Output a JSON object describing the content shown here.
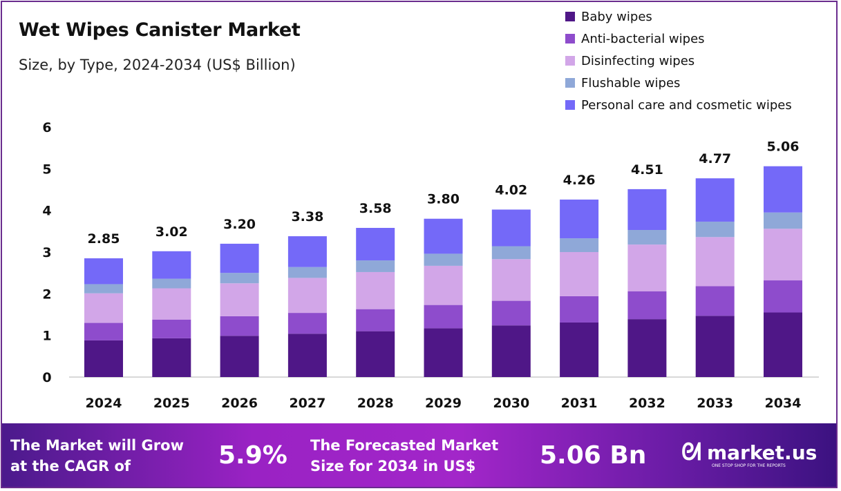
{
  "chart_data": {
    "type": "bar",
    "stacked": true,
    "title": "Wet Wipes Canister Market",
    "subtitle": "Size, by Type, 2024-2034 (US$ Billion)",
    "xlabel": "",
    "ylabel": "",
    "ylim": [
      0,
      6
    ],
    "yticks": [
      "0",
      "1",
      "2",
      "3",
      "4",
      "5",
      "6"
    ],
    "grid": false,
    "legend_position": "top-right",
    "categories": [
      "2024",
      "2025",
      "2026",
      "2027",
      "2028",
      "2029",
      "2030",
      "2031",
      "2032",
      "2033",
      "2034"
    ],
    "totals": [
      "2.85",
      "3.02",
      "3.20",
      "3.38",
      "3.58",
      "3.80",
      "4.02",
      "4.26",
      "4.51",
      "4.77",
      "5.06"
    ],
    "series": [
      {
        "name": "Baby wipes",
        "color": "#4f1787",
        "values": [
          0.88,
          0.93,
          0.99,
          1.04,
          1.1,
          1.17,
          1.24,
          1.31,
          1.39,
          1.47,
          1.55
        ]
      },
      {
        "name": "Anti-bacterial wipes",
        "color": "#8e4ccc",
        "values": [
          0.42,
          0.45,
          0.47,
          0.5,
          0.53,
          0.56,
          0.59,
          0.63,
          0.67,
          0.71,
          0.77
        ]
      },
      {
        "name": "Disinfecting wipes",
        "color": "#d2a6e8",
        "values": [
          0.71,
          0.75,
          0.79,
          0.84,
          0.89,
          0.94,
          1.0,
          1.06,
          1.12,
          1.18,
          1.24
        ]
      },
      {
        "name": "Flushable wipes",
        "color": "#8fa8d8",
        "values": [
          0.22,
          0.23,
          0.25,
          0.26,
          0.28,
          0.29,
          0.31,
          0.33,
          0.35,
          0.37,
          0.39
        ]
      },
      {
        "name": "Personal care and cosmetic wipes",
        "color": "#7469f8",
        "values": [
          0.62,
          0.66,
          0.7,
          0.74,
          0.78,
          0.84,
          0.88,
          0.93,
          0.98,
          1.04,
          1.11
        ]
      }
    ]
  },
  "footer": {
    "cagr_label_1": "The Market will Grow",
    "cagr_label_2": "at the CAGR of",
    "cagr_value": "5.9%",
    "forecast_label_1": "The Forecasted Market",
    "forecast_label_2": "Size for 2034 in US$",
    "forecast_value": "5.06 Bn",
    "logo_text": "market.us",
    "logo_tagline": "ONE STOP SHOP FOR THE REPORTS"
  }
}
